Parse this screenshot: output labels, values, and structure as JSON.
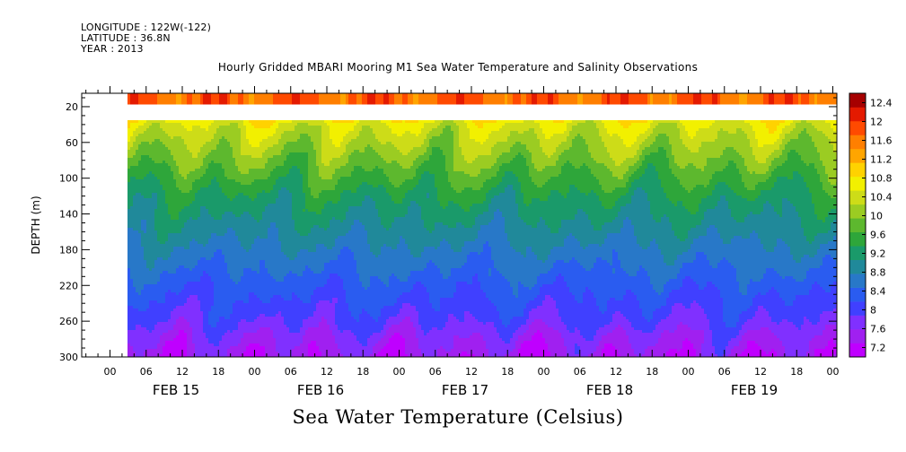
{
  "meta": {
    "longitude": "LONGITUDE : 122W(-122)",
    "latitude": "LATITUDE : 36.8N",
    "year": "YEAR : 2013"
  },
  "chart_data": {
    "type": "heatmap",
    "title": "Hourly Gridded MBARI Mooring M1 Sea Water Temperature and Salinity Observations",
    "xlabel": "",
    "ylabel": "DEPTH (m)",
    "colorbar_label": "Sea Water Temperature (Celsius)",
    "x_hour_ticks": [
      "00",
      "06",
      "12",
      "18",
      "00",
      "06",
      "12",
      "18",
      "00",
      "06",
      "12",
      "18",
      "00",
      "06",
      "12",
      "18",
      "00",
      "06",
      "12",
      "18",
      "00"
    ],
    "x_day_labels": [
      "FEB 15",
      "FEB 16",
      "FEB 17",
      "FEB 18",
      "FEB 19"
    ],
    "y_ticks": [
      20,
      60,
      100,
      140,
      180,
      220,
      260,
      300
    ],
    "ylim": [
      300,
      5
    ],
    "colorbar_ticks": [
      7.2,
      7.6,
      8,
      8.4,
      8.8,
      9.2,
      9.6,
      10,
      10.4,
      10.8,
      11.2,
      11.6,
      12,
      12.4
    ],
    "data_coverage": {
      "start": "FEB 15 03:00",
      "end": "FEB 20 00:00",
      "top_layer_depth": [
        6,
        16
      ],
      "missing_depth_range": [
        16,
        36
      ]
    },
    "profile": [
      {
        "depth": 10,
        "temp": 11.8
      },
      {
        "depth": 40,
        "temp": 10.5
      },
      {
        "depth": 60,
        "temp": 10.2
      },
      {
        "depth": 80,
        "temp": 9.9
      },
      {
        "depth": 100,
        "temp": 9.6
      },
      {
        "depth": 120,
        "temp": 9.3
      },
      {
        "depth": 140,
        "temp": 9.1
      },
      {
        "depth": 160,
        "temp": 8.9
      },
      {
        "depth": 180,
        "temp": 8.7
      },
      {
        "depth": 200,
        "temp": 8.5
      },
      {
        "depth": 220,
        "temp": 8.3
      },
      {
        "depth": 240,
        "temp": 8.1
      },
      {
        "depth": 260,
        "temp": 7.9
      },
      {
        "depth": 280,
        "temp": 7.6
      },
      {
        "depth": 300,
        "temp": 7.4
      }
    ],
    "colors": [
      "#bf00ff",
      "#a020f0",
      "#8030ff",
      "#4040ff",
      "#2a5cf0",
      "#2878c8",
      "#20899a",
      "#1a9a6a",
      "#2ea63a",
      "#5db82e",
      "#9bcc22",
      "#cddc18",
      "#f2f000",
      "#ffd200",
      "#ffa500",
      "#ff7f00",
      "#ff4a00",
      "#e41a00",
      "#a60000"
    ]
  }
}
